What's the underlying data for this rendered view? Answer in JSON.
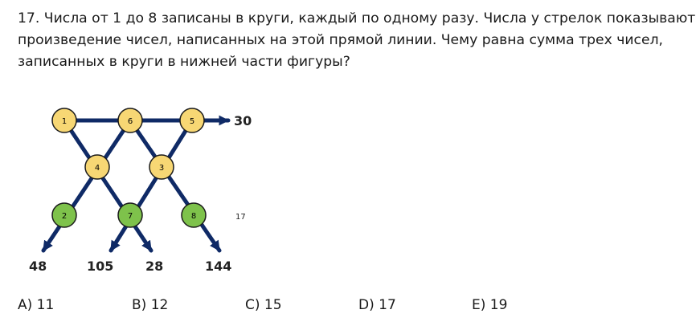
{
  "question": {
    "lines": [
      "17. Числа от 1 до 8 записаны в круги, каждый по одному разу. Числа у стрелок показывают",
      "произведение чисел, написанных на этой прямой линии. Чему равна сумма трех чисел,",
      "записанных в круги в нижней части фигуры?"
    ]
  },
  "figure": {
    "line_color": "#0f2a66",
    "yellow_fill": "#f7d774",
    "green_fill": "#7ec24b",
    "circles": {
      "top_left": "1",
      "top_middle": "6",
      "top_right": "5",
      "mid_left": "4",
      "mid_right": "3",
      "bottom_left": "2",
      "bottom_middle": "7",
      "bottom_right": "8"
    },
    "products": {
      "top_row": "30",
      "bottom_1": "48",
      "bottom_2": "105",
      "bottom_3": "28",
      "bottom_4": "144"
    },
    "aside_number": "17"
  },
  "answers": [
    "A) 11",
    "B) 12",
    "C) 15",
    "D) 17",
    "E) 19"
  ]
}
